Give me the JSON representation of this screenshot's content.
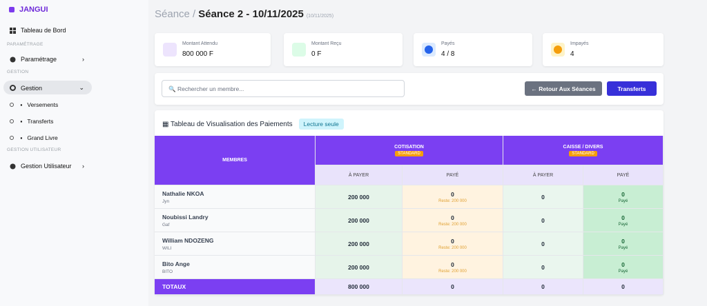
{
  "sidebar": {
    "brand": "JANGUI",
    "items": [
      {
        "label": "Tableau de Bord"
      },
      {
        "section": "PARAMÉTRAGE",
        "label": "Paramétrage"
      },
      {
        "section": "GESTION",
        "label": "Gestion"
      },
      {
        "label": "Versements"
      },
      {
        "label": "Transferts"
      },
      {
        "label": "Grand Livre"
      },
      {
        "section": "GESTION UTILISATEUR",
        "label": "Gestion Utilisateur"
      }
    ]
  },
  "header": {
    "crumb": "Séance /",
    "title": "Séance 2 - 10/11/2025",
    "date": "(10/11/2025)"
  },
  "cards": [
    {
      "label": "Montant Attendu",
      "value": "800 000 F"
    },
    {
      "label": "Montant Reçu",
      "value": "0 F"
    },
    {
      "label": "Payés",
      "value": "4 / 8"
    },
    {
      "label": "Impayés",
      "value": "4"
    }
  ],
  "toolbar": {
    "search": "Rechercher un membre...",
    "back": "← Retour Aux Séances",
    "transfers": "Transferts"
  },
  "table": {
    "title": "Tableau de Visualisation des Paiements",
    "badge": "Lecture seule",
    "header": {
      "members": "MEMBRES",
      "group1": "COTISATION",
      "group1_tag": "STANDARD",
      "group2": "CAISSE / DIVERS",
      "group2_tag": "STANDARD",
      "due1": "À PAYER",
      "paid1": "PAYÉ",
      "due2": "À PAYER",
      "paid2": "PAYÉ"
    },
    "rows": [
      {
        "name": "Nathalie NKOA",
        "code": "Jyn",
        "due": "200 000",
        "paid": "0",
        "rest": "Reste: 200 000",
        "due2": "0",
        "paid2": "0",
        "status": "Payé"
      },
      {
        "name": "Noubissi Landry",
        "code": "Gaf",
        "due": "200 000",
        "paid": "0",
        "rest": "Reste: 200 000",
        "due2": "0",
        "paid2": "0",
        "status": "Payé"
      },
      {
        "name": "William NDOZENG",
        "code": "WILI",
        "due": "200 000",
        "paid": "0",
        "rest": "Reste: 200 000",
        "due2": "0",
        "paid2": "0",
        "status": "Payé"
      },
      {
        "name": "Bito Ange",
        "code": "BITO",
        "due": "200 000",
        "paid": "0",
        "rest": "Reste: 200 000",
        "due2": "0",
        "paid2": "0",
        "status": "Payé"
      }
    ],
    "totals": {
      "label": "TOTAUX",
      "due": "800 000",
      "paid": "0",
      "due2": "0",
      "paid2": "0"
    }
  }
}
